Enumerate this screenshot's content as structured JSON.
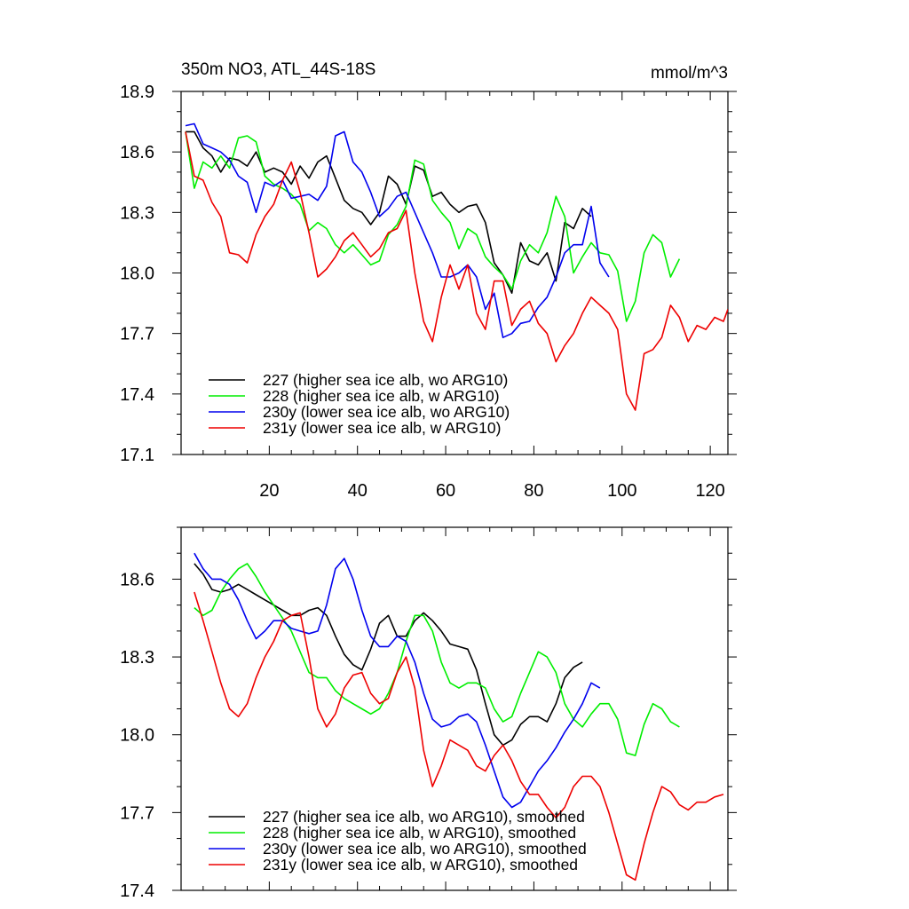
{
  "chart_data": [
    {
      "type": "line",
      "title": "350m NO3, ATL_44S-18S",
      "units": "mmol/m^3",
      "xlabel": "",
      "ylabel": "",
      "xlim": [
        0,
        124
      ],
      "ylim": [
        17.1,
        18.9
      ],
      "xticks": [
        20,
        40,
        60,
        80,
        100,
        120
      ],
      "xtick_labels": [
        "20",
        "40",
        "60",
        "80",
        "100",
        "120"
      ],
      "yticks": [
        17.1,
        17.4,
        17.7,
        18.0,
        18.3,
        18.6,
        18.9
      ],
      "ytick_labels": [
        "17.1",
        "17.4",
        "17.7",
        "18.0",
        "18.3",
        "18.6",
        "18.9"
      ],
      "legend_position": "bottom-left",
      "series": [
        {
          "name": "227 (higher sea ice alb, wo ARG10)",
          "color": "#000000",
          "x": [
            1,
            3,
            5,
            7,
            9,
            11,
            13,
            15,
            17,
            19,
            21,
            23,
            25,
            27,
            29,
            31,
            33,
            35,
            37,
            39,
            41,
            43,
            45,
            47,
            49,
            51,
            53,
            55,
            57,
            59,
            61,
            63,
            65,
            67,
            69,
            71,
            73,
            75,
            77,
            79,
            81,
            83,
            85,
            87,
            89,
            91,
            93
          ],
          "values": [
            18.7,
            18.7,
            18.62,
            18.58,
            18.5,
            18.57,
            18.56,
            18.53,
            18.6,
            18.5,
            18.52,
            18.5,
            18.44,
            18.53,
            18.47,
            18.55,
            18.58,
            18.47,
            18.36,
            18.32,
            18.3,
            18.24,
            18.3,
            18.48,
            18.44,
            18.34,
            18.53,
            18.51,
            18.38,
            18.4,
            18.34,
            18.3,
            18.33,
            18.34,
            18.25,
            18.05,
            17.99,
            17.9,
            18.15,
            18.06,
            18.04,
            18.1,
            17.96,
            18.25,
            18.22,
            18.32,
            18.28
          ]
        },
        {
          "name": "228 (higher sea ice alb, w ARG10)",
          "color": "#00ee00",
          "x": [
            1,
            3,
            5,
            7,
            9,
            11,
            13,
            15,
            17,
            19,
            21,
            23,
            25,
            27,
            29,
            31,
            33,
            35,
            37,
            39,
            41,
            43,
            45,
            47,
            49,
            51,
            53,
            55,
            57,
            59,
            61,
            63,
            65,
            67,
            69,
            71,
            73,
            75,
            77,
            79,
            81,
            83,
            85,
            87,
            89,
            91,
            93,
            95,
            97,
            99,
            101,
            103,
            105,
            107,
            109,
            111,
            113
          ],
          "values": [
            18.7,
            18.42,
            18.55,
            18.52,
            18.58,
            18.52,
            18.67,
            18.68,
            18.65,
            18.48,
            18.44,
            18.42,
            18.39,
            18.34,
            18.21,
            18.25,
            18.22,
            18.14,
            18.1,
            18.14,
            18.09,
            18.04,
            18.06,
            18.19,
            18.24,
            18.33,
            18.56,
            18.54,
            18.36,
            18.3,
            18.25,
            18.12,
            18.22,
            18.19,
            18.08,
            18.03,
            17.99,
            17.92,
            18.06,
            18.14,
            18.1,
            18.2,
            18.38,
            18.28,
            18.0,
            18.08,
            18.15,
            18.1,
            18.09,
            18.01,
            17.76,
            17.86,
            18.1,
            18.19,
            18.15,
            17.98,
            18.07
          ]
        },
        {
          "name": "230y (lower sea ice alb, wo ARG10)",
          "color": "#0000ee",
          "x": [
            1,
            3,
            5,
            7,
            9,
            11,
            13,
            15,
            17,
            19,
            21,
            23,
            25,
            27,
            29,
            31,
            33,
            35,
            37,
            39,
            41,
            43,
            45,
            47,
            49,
            51,
            53,
            55,
            57,
            59,
            61,
            63,
            65,
            67,
            69,
            71,
            73,
            75,
            77,
            79,
            81,
            83,
            85,
            87,
            89,
            91,
            93,
            95,
            97
          ],
          "values": [
            18.73,
            18.74,
            18.64,
            18.62,
            18.6,
            18.56,
            18.48,
            18.45,
            18.3,
            18.45,
            18.43,
            18.46,
            18.37,
            18.38,
            18.39,
            18.36,
            18.43,
            18.68,
            18.7,
            18.55,
            18.5,
            18.4,
            18.28,
            18.32,
            18.38,
            18.4,
            18.3,
            18.2,
            18.1,
            17.98,
            17.98,
            18.0,
            18.04,
            17.98,
            17.82,
            17.9,
            17.68,
            17.7,
            17.75,
            17.76,
            17.83,
            17.88,
            17.98,
            18.1,
            18.14,
            18.14,
            18.33,
            18.05,
            17.98
          ]
        },
        {
          "name": "231y (lower sea ice alb, w ARG10)",
          "color": "#ee0000",
          "x": [
            1,
            3,
            5,
            7,
            9,
            11,
            13,
            15,
            17,
            19,
            21,
            23,
            25,
            27,
            29,
            31,
            33,
            35,
            37,
            39,
            41,
            43,
            45,
            47,
            49,
            51,
            53,
            55,
            57,
            59,
            61,
            63,
            65,
            67,
            69,
            71,
            73,
            75,
            77,
            79,
            81,
            83,
            85,
            87,
            89,
            91,
            93,
            95,
            97,
            99,
            101,
            103,
            105,
            107,
            109,
            111,
            113,
            115,
            117,
            119,
            121,
            123,
            124
          ],
          "values": [
            18.7,
            18.48,
            18.46,
            18.35,
            18.28,
            18.1,
            18.09,
            18.05,
            18.19,
            18.28,
            18.34,
            18.46,
            18.55,
            18.4,
            18.2,
            17.98,
            18.02,
            18.08,
            18.16,
            18.2,
            18.14,
            18.08,
            18.12,
            18.2,
            18.22,
            18.31,
            18.0,
            17.76,
            17.66,
            17.88,
            18.04,
            17.92,
            18.04,
            17.8,
            17.72,
            17.96,
            17.96,
            17.74,
            17.82,
            17.86,
            17.75,
            17.7,
            17.56,
            17.64,
            17.7,
            17.8,
            17.88,
            17.84,
            17.8,
            17.72,
            17.4,
            17.32,
            17.6,
            17.62,
            17.68,
            17.84,
            17.78,
            17.66,
            17.74,
            17.72,
            17.78,
            17.76,
            17.82
          ]
        }
      ]
    },
    {
      "type": "line",
      "title": "",
      "xlabel": "",
      "ylabel": "",
      "xlim": [
        0,
        124
      ],
      "ylim": [
        17.4,
        18.8
      ],
      "xticks": [
        20,
        40,
        60,
        80,
        100,
        120
      ],
      "xtick_labels": [
        "",
        "",
        "",
        "",
        "",
        ""
      ],
      "yticks": [
        17.4,
        17.7,
        18.0,
        18.3,
        18.6
      ],
      "ytick_labels": [
        "17.4",
        "17.7",
        "18.0",
        "18.3",
        "18.6"
      ],
      "legend_position": "bottom-left",
      "series": [
        {
          "name": "227 (higher sea ice alb, wo ARG10), smoothed",
          "color": "#000000",
          "x": [
            3,
            5,
            7,
            9,
            11,
            13,
            15,
            17,
            19,
            21,
            23,
            25,
            27,
            29,
            31,
            33,
            35,
            37,
            39,
            41,
            43,
            45,
            47,
            49,
            51,
            53,
            55,
            57,
            59,
            61,
            63,
            65,
            67,
            69,
            71,
            73,
            75,
            77,
            79,
            81,
            83,
            85,
            87,
            89,
            91
          ],
          "values": [
            18.66,
            18.62,
            18.56,
            18.55,
            18.56,
            18.58,
            18.56,
            18.54,
            18.52,
            18.5,
            18.48,
            18.46,
            18.46,
            18.48,
            18.49,
            18.46,
            18.38,
            18.31,
            18.27,
            18.25,
            18.33,
            18.43,
            18.46,
            18.38,
            18.38,
            18.44,
            18.47,
            18.44,
            18.4,
            18.35,
            18.34,
            18.33,
            18.25,
            18.12,
            18.0,
            17.96,
            17.98,
            18.04,
            18.07,
            18.07,
            18.05,
            18.12,
            18.22,
            18.26,
            18.28
          ]
        },
        {
          "name": "228 (higher sea ice alb, w ARG10), smoothed",
          "color": "#00ee00",
          "x": [
            3,
            5,
            7,
            9,
            11,
            13,
            15,
            17,
            19,
            21,
            23,
            25,
            27,
            29,
            31,
            33,
            35,
            37,
            39,
            41,
            43,
            45,
            47,
            49,
            51,
            53,
            55,
            57,
            59,
            61,
            63,
            65,
            67,
            69,
            71,
            73,
            75,
            77,
            79,
            81,
            83,
            85,
            87,
            89,
            91,
            93,
            95,
            97,
            99,
            101,
            103,
            105,
            107,
            109,
            111,
            113
          ],
          "values": [
            18.49,
            18.46,
            18.48,
            18.55,
            18.6,
            18.64,
            18.66,
            18.61,
            18.55,
            18.5,
            18.45,
            18.4,
            18.32,
            18.24,
            18.22,
            18.22,
            18.17,
            18.14,
            18.12,
            18.1,
            18.08,
            18.1,
            18.16,
            18.24,
            18.36,
            18.46,
            18.46,
            18.4,
            18.28,
            18.2,
            18.18,
            18.2,
            18.2,
            18.18,
            18.1,
            18.05,
            18.07,
            18.16,
            18.24,
            18.32,
            18.3,
            18.24,
            18.12,
            18.06,
            18.03,
            18.08,
            18.12,
            18.12,
            18.06,
            17.93,
            17.92,
            18.04,
            18.12,
            18.1,
            18.05,
            18.03
          ]
        },
        {
          "name": "230y (lower sea ice alb, wo ARG10), smoothed",
          "color": "#0000ee",
          "x": [
            3,
            5,
            7,
            9,
            11,
            13,
            15,
            17,
            19,
            21,
            23,
            25,
            27,
            29,
            31,
            33,
            35,
            37,
            39,
            41,
            43,
            45,
            47,
            49,
            51,
            53,
            55,
            57,
            59,
            61,
            63,
            65,
            67,
            69,
            71,
            73,
            75,
            77,
            79,
            81,
            83,
            85,
            87,
            89,
            91,
            93,
            95
          ],
          "values": [
            18.7,
            18.64,
            18.6,
            18.6,
            18.58,
            18.52,
            18.44,
            18.37,
            18.4,
            18.44,
            18.44,
            18.41,
            18.4,
            18.39,
            18.4,
            18.5,
            18.64,
            18.68,
            18.6,
            18.48,
            18.38,
            18.34,
            18.34,
            18.38,
            18.36,
            18.28,
            18.16,
            18.06,
            18.03,
            18.04,
            18.07,
            18.08,
            18.05,
            17.96,
            17.86,
            17.76,
            17.72,
            17.74,
            17.8,
            17.86,
            17.9,
            17.95,
            18.01,
            18.06,
            18.12,
            18.2,
            18.18
          ]
        },
        {
          "name": "231y (lower sea ice alb, w ARG10), smoothed",
          "color": "#ee0000",
          "x": [
            3,
            5,
            7,
            9,
            11,
            13,
            15,
            17,
            19,
            21,
            23,
            25,
            27,
            29,
            31,
            33,
            35,
            37,
            39,
            41,
            43,
            45,
            47,
            49,
            51,
            53,
            55,
            57,
            59,
            61,
            63,
            65,
            67,
            69,
            71,
            73,
            75,
            77,
            79,
            81,
            83,
            85,
            87,
            89,
            91,
            93,
            95,
            97,
            99,
            101,
            103,
            105,
            107,
            109,
            111,
            113,
            115,
            117,
            119,
            121,
            123
          ],
          "values": [
            18.55,
            18.44,
            18.32,
            18.2,
            18.1,
            18.07,
            18.12,
            18.22,
            18.3,
            18.36,
            18.44,
            18.46,
            18.47,
            18.3,
            18.1,
            18.03,
            18.08,
            18.18,
            18.23,
            18.24,
            18.16,
            18.12,
            18.14,
            18.24,
            18.3,
            18.18,
            17.94,
            17.8,
            17.88,
            17.98,
            17.96,
            17.94,
            17.88,
            17.86,
            17.92,
            17.96,
            17.9,
            17.82,
            17.77,
            17.77,
            17.72,
            17.68,
            17.72,
            17.8,
            17.84,
            17.84,
            17.8,
            17.7,
            17.58,
            17.46,
            17.44,
            17.58,
            17.7,
            17.8,
            17.78,
            17.73,
            17.71,
            17.74,
            17.74,
            17.76,
            17.77
          ]
        }
      ]
    }
  ]
}
